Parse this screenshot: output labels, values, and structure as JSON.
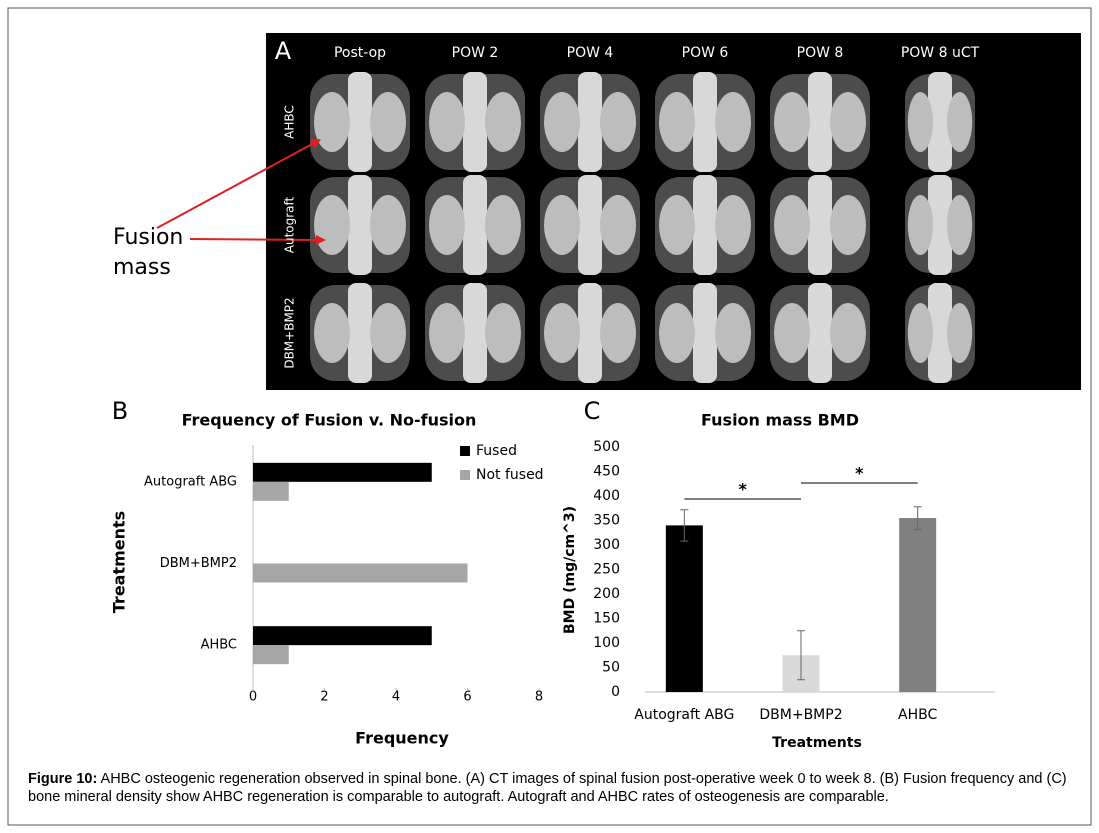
{
  "panel_a": {
    "label": "A",
    "columns": [
      "Post-op",
      "POW 2",
      "POW 4",
      "POW 6",
      "POW 8",
      "POW 8 uCT"
    ],
    "rows": [
      "AHBC",
      "Autograft",
      "DBM+BMP2"
    ],
    "annotation": [
      "Fusion",
      "mass"
    ]
  },
  "chart_data": [
    {
      "type": "hbar",
      "panel_label": "B",
      "title": "Frequency of Fusion v. No-fusion",
      "x_label": "Frequency",
      "y_label": "Treatments",
      "categories": [
        "Autograft ABG",
        "DBM+BMP2",
        "AHBC"
      ],
      "series": [
        {
          "name": "Fused",
          "color": "#000000",
          "values": [
            5,
            0,
            5
          ]
        },
        {
          "name": "Not fused",
          "color": "#a6a6a6",
          "values": [
            1,
            6,
            1
          ]
        }
      ],
      "xlim": [
        0,
        8
      ],
      "xticks": [
        0,
        2,
        4,
        6,
        8
      ],
      "legend": "top-right"
    },
    {
      "type": "bar",
      "panel_label": "C",
      "title": "Fusion mass BMD",
      "x_label": "Treatments",
      "y_label": "BMD (mg/cm^3)",
      "categories": [
        "Autograft ABG",
        "DBM+BMP2",
        "AHBC"
      ],
      "values": [
        340,
        75,
        355
      ],
      "errors": [
        32,
        50,
        23
      ],
      "colors": [
        "#000000",
        "#d9d9d9",
        "#808080"
      ],
      "ylim": [
        0,
        500
      ],
      "yticks": [
        0,
        50,
        100,
        150,
        200,
        250,
        300,
        350,
        400,
        450,
        500
      ],
      "annotations": [
        "*",
        "*"
      ]
    }
  ],
  "caption": {
    "label": "Figure 10:",
    "text": "AHBC osteogenic regeneration observed in spinal bone. (A) CT images of spinal fusion post-operative week 0 to week 8. (B) Fusion frequency and (C) bone mineral density show AHBC regeneration is comparable to autograft. Autograft and AHBC rates of osteogenesis are comparable."
  }
}
